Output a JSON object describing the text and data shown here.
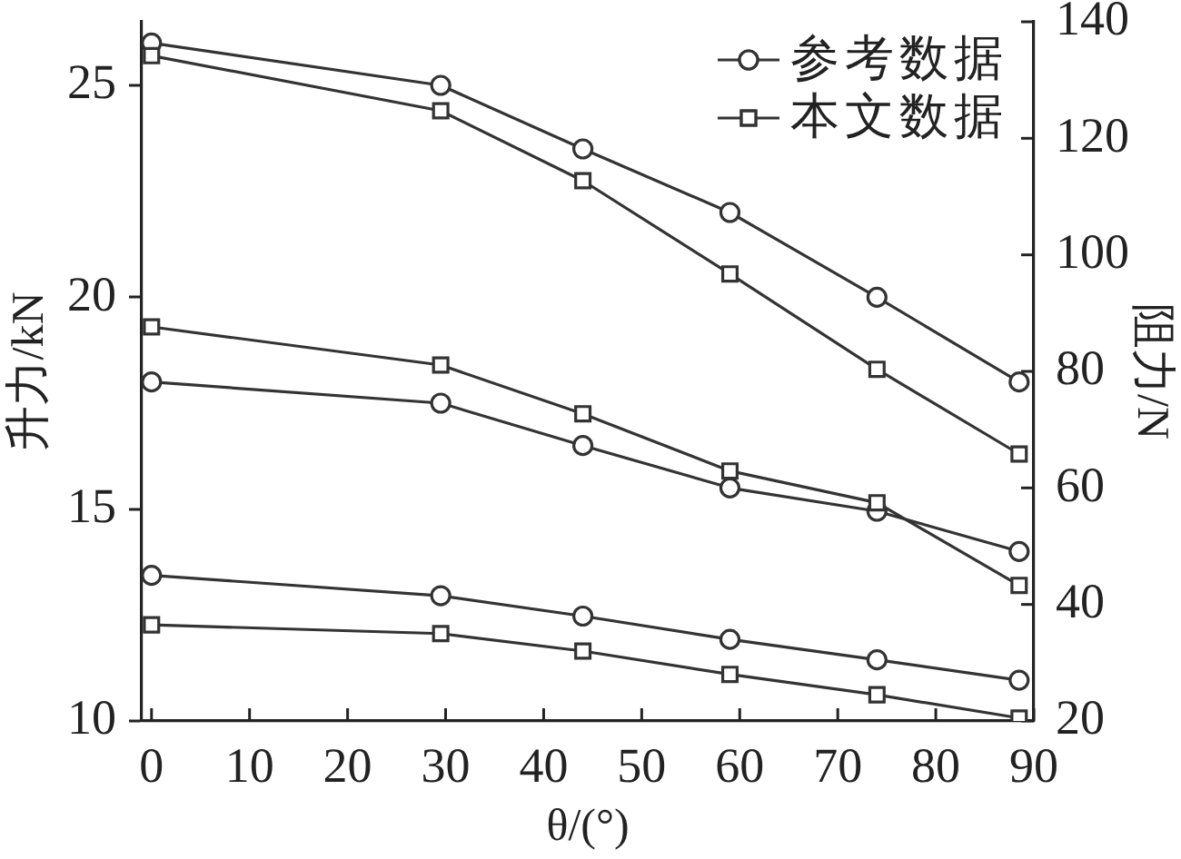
{
  "chart_data": {
    "type": "line",
    "xlabel": "θ/(°)",
    "ylabel": "升力/kN",
    "y2label": "阻力/N",
    "x": [
      0,
      29.5,
      44,
      59,
      74,
      88.5
    ],
    "xlim": [
      -1,
      90
    ],
    "xticks": [
      0,
      10,
      20,
      30,
      40,
      50,
      60,
      70,
      80,
      90
    ],
    "ylim": [
      10,
      26.5
    ],
    "yticks": [
      10,
      15,
      20,
      25
    ],
    "y2lim": [
      20,
      140
    ],
    "y2ticks": [
      20,
      40,
      60,
      80,
      100,
      120,
      140
    ],
    "grid": false,
    "legend": "top right",
    "line_style": "solid",
    "series": [
      {
        "name": "参考数据",
        "color": "#333333",
        "marker": "circle",
        "values": [
          26,
          25,
          23.5,
          22,
          20,
          18
        ]
      },
      {
        "name": "本文数据",
        "color": "#333333",
        "marker": "square",
        "values": [
          25.7,
          24.4,
          22.75,
          20.55,
          18.3,
          16.3
        ]
      },
      {
        "color": "#333333",
        "marker": "circle",
        "values": [
          18,
          17.5,
          16.5,
          15.5,
          14.95,
          14
        ]
      },
      {
        "color": "#333333",
        "marker": "square",
        "values": [
          19.3,
          18.4,
          17.25,
          15.9,
          15.15,
          13.2
        ]
      },
      {
        "color": "#333333",
        "marker": "circle",
        "axis": "y2",
        "values": [
          45,
          41.5,
          38,
          34,
          30.5,
          27
        ]
      },
      {
        "color": "#333333",
        "marker": "square",
        "axis": "y2",
        "values": [
          36.5,
          35,
          32,
          28,
          24.5,
          20.5
        ]
      }
    ]
  }
}
